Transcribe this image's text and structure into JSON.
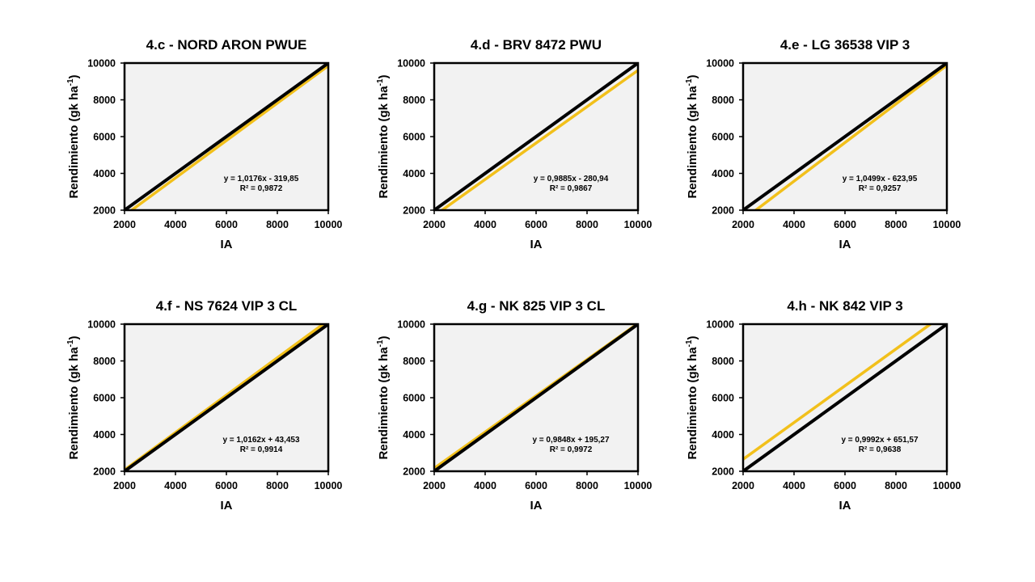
{
  "chart_data": [
    {
      "type": "line",
      "title": "4.c -  NORD ARON PWUE",
      "xlabel": "IA",
      "ylabel": "Rendimiento (gk ha",
      "ylabel_sup": "-1",
      "ylabel_close": ")",
      "xlim": [
        2000,
        10000
      ],
      "ylim": [
        2000,
        10000
      ],
      "xticks": [
        "2000",
        "4000",
        "6000",
        "8000",
        "10000"
      ],
      "yticks": [
        "2000",
        "4000",
        "6000",
        "8000",
        "10000"
      ],
      "series": [
        {
          "name": "1:1",
          "color": "#000000",
          "slope": 1,
          "intercept": 0
        },
        {
          "name": "fit",
          "color": "#f2c01b",
          "slope": 1.0176,
          "intercept": -319.85
        }
      ],
      "equation": "y = 1,0176x - 319,85",
      "r2": "R² = 0,9872"
    },
    {
      "type": "line",
      "title": "4.d -  BRV 8472 PWU",
      "xlabel": "IA",
      "ylabel": "Rendimiento (gk ha",
      "ylabel_sup": "-1",
      "ylabel_close": ")",
      "xlim": [
        2000,
        10000
      ],
      "ylim": [
        2000,
        10000
      ],
      "xticks": [
        "2000",
        "4000",
        "6000",
        "8000",
        "10000"
      ],
      "yticks": [
        "2000",
        "4000",
        "6000",
        "8000",
        "10000"
      ],
      "series": [
        {
          "name": "1:1",
          "color": "#000000",
          "slope": 1,
          "intercept": 0
        },
        {
          "name": "fit",
          "color": "#f2c01b",
          "slope": 0.9885,
          "intercept": -280.94
        }
      ],
      "equation": "y = 0,9885x - 280,94",
      "r2": "R² = 0,9867"
    },
    {
      "type": "line",
      "title": "4.e -  LG 36538 VIP 3",
      "xlabel": "IA",
      "ylabel": "Rendimiento (gk ha",
      "ylabel_sup": "-1",
      "ylabel_close": ")",
      "xlim": [
        2000,
        10000
      ],
      "ylim": [
        2000,
        10000
      ],
      "xticks": [
        "2000",
        "4000",
        "6000",
        "8000",
        "10000"
      ],
      "yticks": [
        "2000",
        "4000",
        "6000",
        "8000",
        "10000"
      ],
      "series": [
        {
          "name": "1:1",
          "color": "#000000",
          "slope": 1,
          "intercept": 0
        },
        {
          "name": "fit",
          "color": "#f2c01b",
          "slope": 1.0499,
          "intercept": -623.95
        }
      ],
      "equation": "y = 1,0499x - 623,95",
      "r2": "R² = 0,9257"
    },
    {
      "type": "line",
      "title": "4.f -  NS 7624 VIP 3 CL",
      "xlabel": "IA",
      "ylabel": "Rendimiento (gk ha",
      "ylabel_sup": "-1",
      "ylabel_close": ")",
      "xlim": [
        2000,
        10000
      ],
      "ylim": [
        2000,
        10000
      ],
      "xticks": [
        "2000",
        "4000",
        "6000",
        "8000",
        "10000"
      ],
      "yticks": [
        "2000",
        "4000",
        "6000",
        "8000",
        "10000"
      ],
      "series": [
        {
          "name": "1:1",
          "color": "#000000",
          "slope": 1,
          "intercept": 0
        },
        {
          "name": "fit",
          "color": "#f2c01b",
          "slope": 1.0162,
          "intercept": 43.453
        }
      ],
      "equation": "y = 1,0162x + 43,453",
      "r2": "R² = 0,9914"
    },
    {
      "type": "line",
      "title": "4.g -  NK 825 VIP 3 CL",
      "xlabel": "IA",
      "ylabel": "Rendimiento (gk ha",
      "ylabel_sup": "-1",
      "ylabel_close": ")",
      "xlim": [
        2000,
        10000
      ],
      "ylim": [
        2000,
        10000
      ],
      "xticks": [
        "2000",
        "4000",
        "6000",
        "8000",
        "10000"
      ],
      "yticks": [
        "2000",
        "4000",
        "6000",
        "8000",
        "10000"
      ],
      "series": [
        {
          "name": "1:1",
          "color": "#000000",
          "slope": 1,
          "intercept": 0
        },
        {
          "name": "fit",
          "color": "#f2c01b",
          "slope": 0.9848,
          "intercept": 195.27
        }
      ],
      "equation": "y = 0,9848x + 195,27",
      "r2": "R² = 0,9972"
    },
    {
      "type": "line",
      "title": "4.h -  NK 842 VIP 3",
      "xlabel": "IA",
      "ylabel": "Rendimiento (gk ha",
      "ylabel_sup": "-1",
      "ylabel_close": ")",
      "xlim": [
        2000,
        10000
      ],
      "ylim": [
        2000,
        10000
      ],
      "xticks": [
        "2000",
        "4000",
        "6000",
        "8000",
        "10000"
      ],
      "yticks": [
        "2000",
        "4000",
        "6000",
        "8000",
        "10000"
      ],
      "series": [
        {
          "name": "1:1",
          "color": "#000000",
          "slope": 1,
          "intercept": 0
        },
        {
          "name": "fit",
          "color": "#f2c01b",
          "slope": 0.9992,
          "intercept": 651.57
        }
      ],
      "equation": "y = 0,9992x + 651,57",
      "r2": "R² = 0,9638"
    }
  ],
  "colors": {
    "plot_background": "#f2f2f2",
    "frame": "#000000",
    "identity_line": "#000000",
    "fit_line": "#f2c01b"
  }
}
